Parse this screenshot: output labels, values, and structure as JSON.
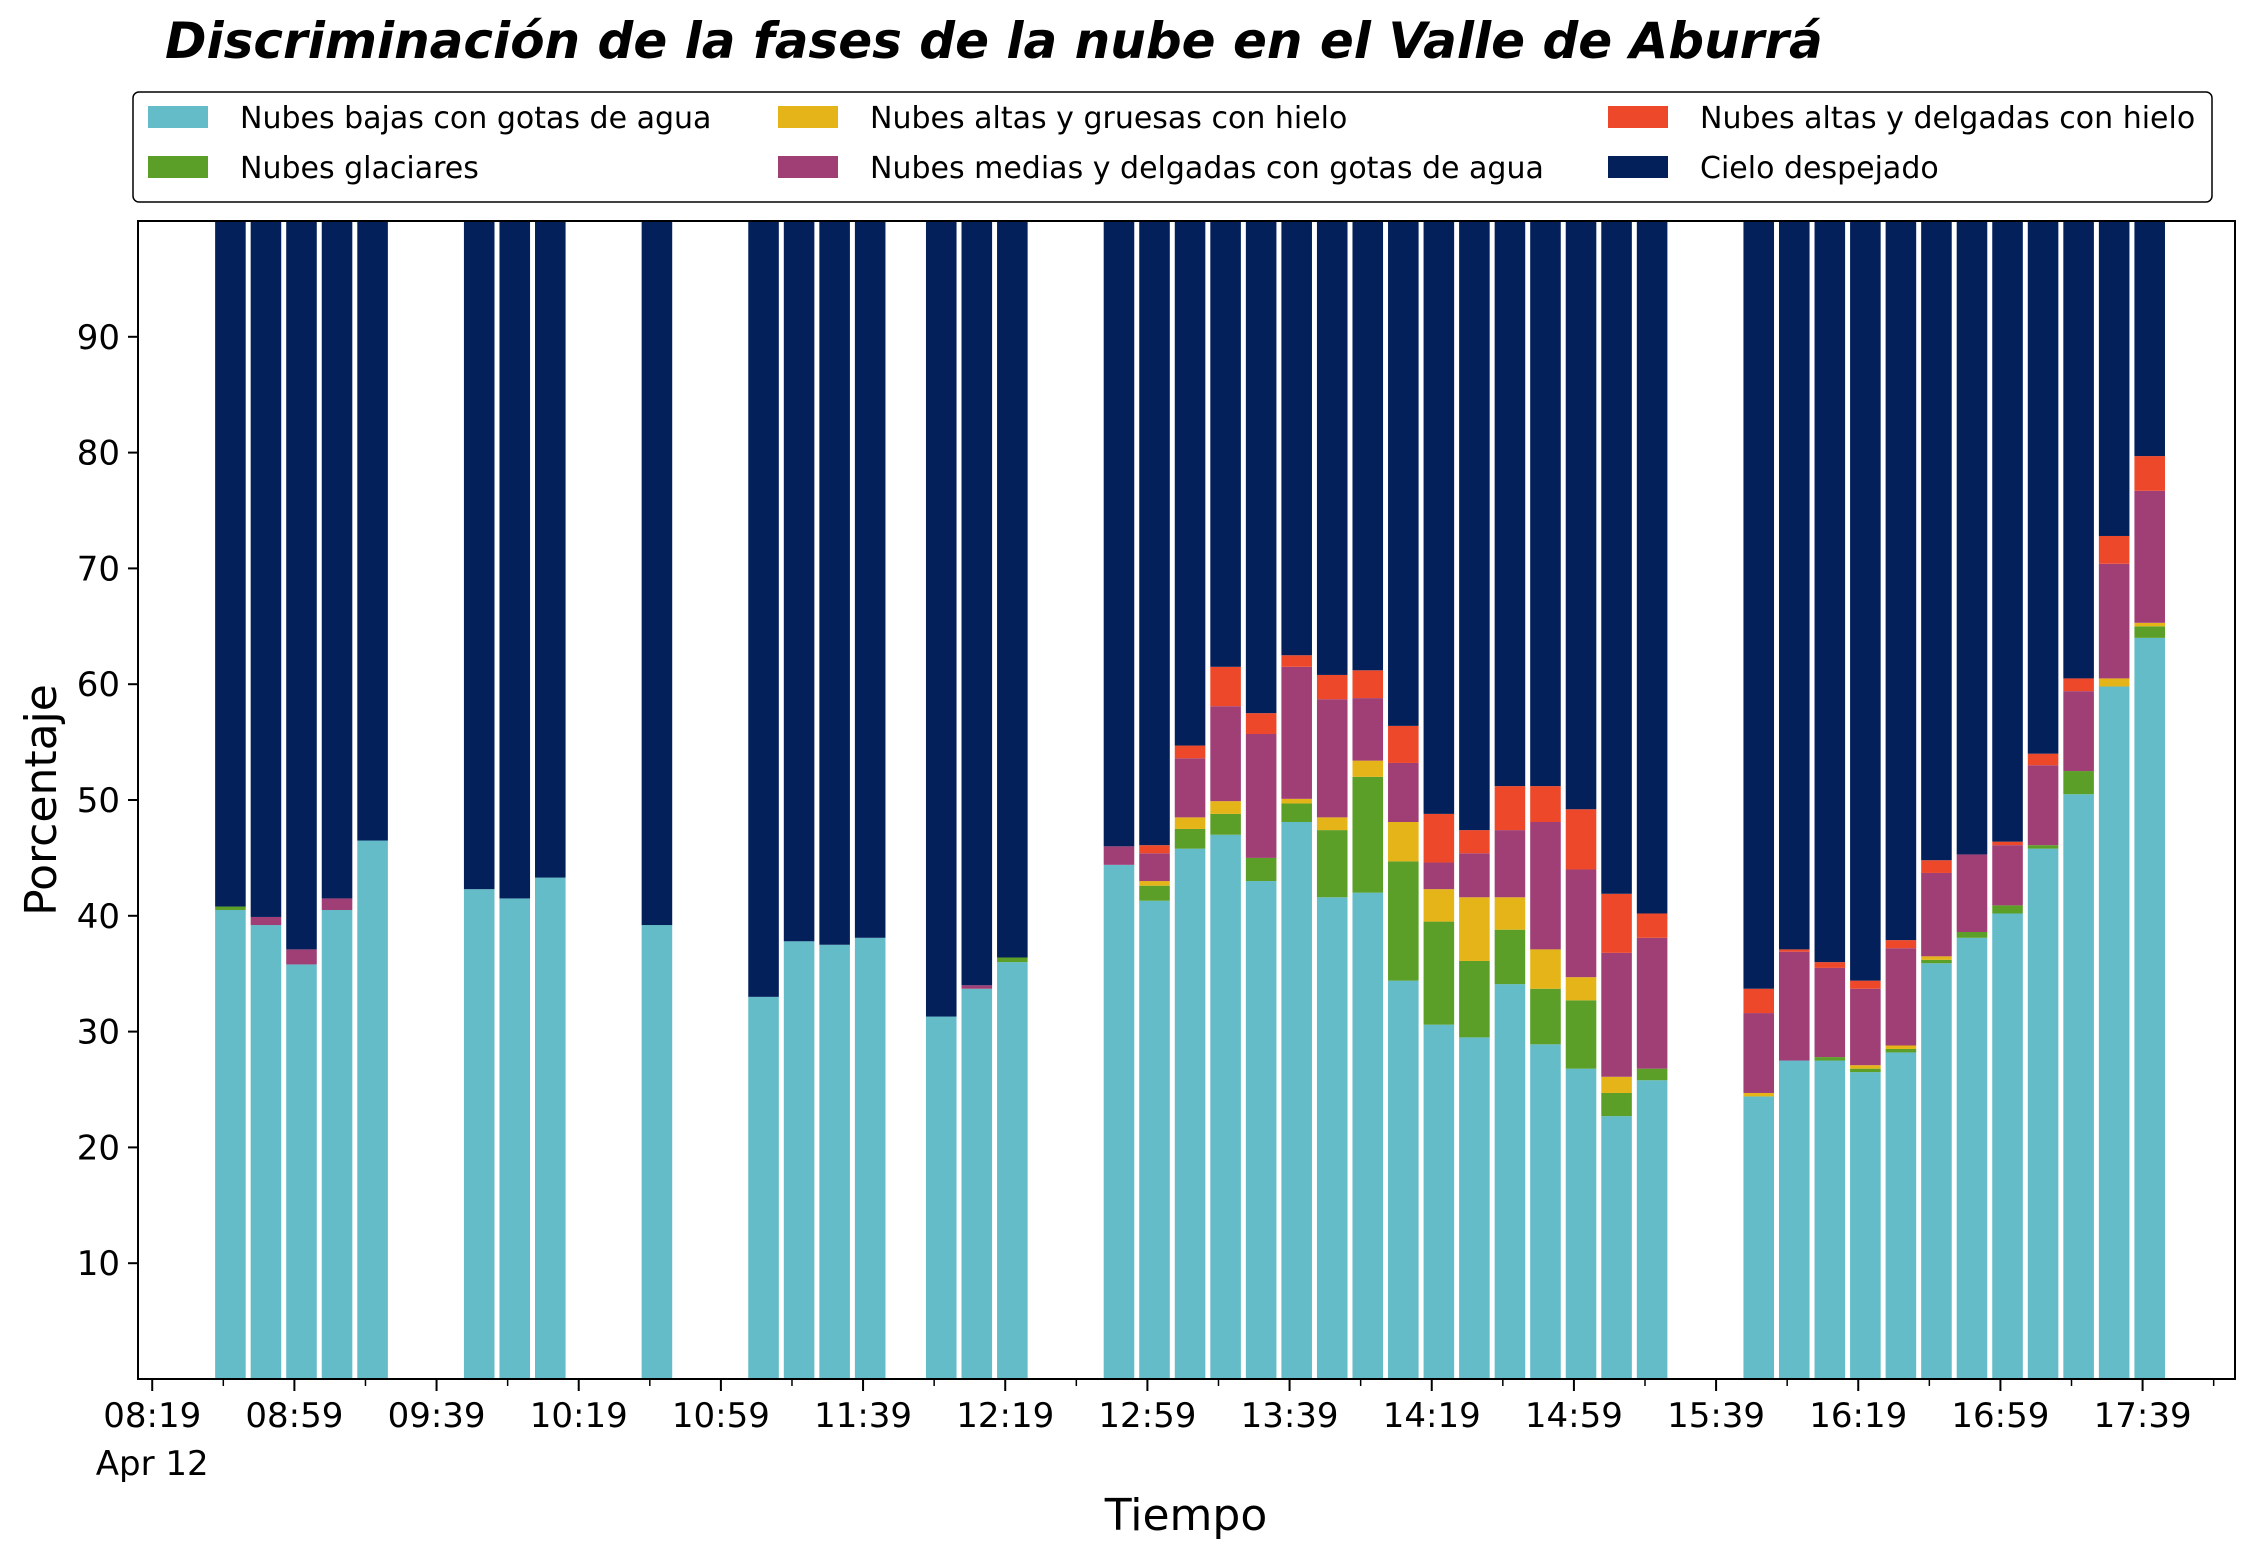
{
  "chart_data": {
    "type": "bar",
    "stacked": true,
    "title": "Discriminación de la fases de la nube en el Valle de Aburrá",
    "xlabel": "Tiempo",
    "ylabel": "Porcentaje",
    "ylim": [
      0,
      100
    ],
    "yticks": [
      10,
      20,
      30,
      40,
      50,
      60,
      70,
      80,
      90
    ],
    "xlim": [
      495,
      1085
    ],
    "xticks": [
      {
        "t": 499,
        "label": "08:19",
        "sublabel": "Apr 12"
      },
      {
        "t": 539,
        "label": "08:59"
      },
      {
        "t": 579,
        "label": "09:39"
      },
      {
        "t": 619,
        "label": "10:19"
      },
      {
        "t": 659,
        "label": "10:59"
      },
      {
        "t": 699,
        "label": "11:39"
      },
      {
        "t": 739,
        "label": "12:19"
      },
      {
        "t": 779,
        "label": "12:59"
      },
      {
        "t": 819,
        "label": "13:39"
      },
      {
        "t": 859,
        "label": "14:19"
      },
      {
        "t": 899,
        "label": "14:59"
      },
      {
        "t": 939,
        "label": "15:39"
      },
      {
        "t": 979,
        "label": "16:19"
      },
      {
        "t": 1019,
        "label": "16:59"
      },
      {
        "t": 1059,
        "label": "17:39"
      }
    ],
    "grid": false,
    "legend_position": "top",
    "series": [
      {
        "name": "Nubes bajas con gotas de agua",
        "color": "#63bcc8"
      },
      {
        "name": "Nubes glaciares",
        "color": "#5b9f28"
      },
      {
        "name": "Nubes altas y gruesas con hielo",
        "color": "#e5b418"
      },
      {
        "name": "Nubes medias y delgadas con gotas de agua",
        "color": "#a03e76"
      },
      {
        "name": "Nubes altas y delgadas con hielo",
        "color": "#ee482b"
      },
      {
        "name": "Cielo despejado",
        "color": "#03205b"
      }
    ],
    "bars": [
      {
        "t": 521,
        "values": [
          40.5,
          0.3,
          0,
          0,
          0,
          59.2
        ]
      },
      {
        "t": 531,
        "values": [
          39.2,
          0,
          0,
          0.7,
          0,
          60.1
        ]
      },
      {
        "t": 541,
        "values": [
          35.8,
          0,
          0,
          1.3,
          0,
          62.9
        ]
      },
      {
        "t": 551,
        "values": [
          40.5,
          0,
          0,
          1.0,
          0,
          58.5
        ]
      },
      {
        "t": 561,
        "values": [
          46.5,
          0,
          0,
          0,
          0,
          53.5
        ]
      },
      {
        "t": 591,
        "values": [
          42.3,
          0,
          0,
          0,
          0,
          57.7
        ]
      },
      {
        "t": 601,
        "values": [
          41.5,
          0,
          0,
          0,
          0,
          58.5
        ]
      },
      {
        "t": 611,
        "values": [
          43.3,
          0,
          0,
          0,
          0,
          56.7
        ]
      },
      {
        "t": 641,
        "values": [
          39.2,
          0,
          0,
          0,
          0,
          60.8
        ]
      },
      {
        "t": 671,
        "values": [
          33.0,
          0,
          0,
          0,
          0,
          67.0
        ]
      },
      {
        "t": 681,
        "values": [
          37.8,
          0,
          0,
          0,
          0,
          62.2
        ]
      },
      {
        "t": 691,
        "values": [
          37.5,
          0,
          0,
          0,
          0,
          62.5
        ]
      },
      {
        "t": 701,
        "values": [
          38.1,
          0,
          0,
          0,
          0,
          61.9
        ]
      },
      {
        "t": 721,
        "values": [
          31.3,
          0,
          0,
          0,
          0,
          68.7
        ]
      },
      {
        "t": 731,
        "values": [
          33.7,
          0,
          0,
          0.3,
          0,
          66.0
        ]
      },
      {
        "t": 741,
        "values": [
          36.0,
          0.4,
          0,
          0,
          0,
          63.6
        ]
      },
      {
        "t": 771,
        "values": [
          44.4,
          0,
          0,
          1.6,
          0,
          54.0
        ]
      },
      {
        "t": 781,
        "values": [
          41.3,
          1.3,
          0.4,
          2.4,
          0.7,
          53.9
        ]
      },
      {
        "t": 791,
        "values": [
          45.8,
          1.7,
          1.0,
          5.1,
          1.1,
          45.3
        ]
      },
      {
        "t": 801,
        "values": [
          47.0,
          1.8,
          1.1,
          8.2,
          3.4,
          38.5
        ]
      },
      {
        "t": 811,
        "values": [
          43.0,
          2.0,
          0,
          10.7,
          1.8,
          42.5
        ]
      },
      {
        "t": 821,
        "values": [
          48.1,
          1.6,
          0.4,
          11.4,
          1.0,
          37.5
        ]
      },
      {
        "t": 831,
        "values": [
          41.6,
          5.8,
          1.1,
          10.2,
          2.1,
          39.2
        ]
      },
      {
        "t": 841,
        "values": [
          42.0,
          10.0,
          1.4,
          5.4,
          2.4,
          38.8
        ]
      },
      {
        "t": 851,
        "values": [
          34.4,
          10.3,
          3.4,
          5.1,
          3.2,
          43.6
        ]
      },
      {
        "t": 861,
        "values": [
          30.6,
          8.9,
          2.8,
          2.3,
          4.2,
          51.2
        ]
      },
      {
        "t": 871,
        "values": [
          29.5,
          6.6,
          5.5,
          3.8,
          2.0,
          52.6
        ]
      },
      {
        "t": 881,
        "values": [
          34.1,
          4.7,
          2.8,
          5.8,
          3.8,
          48.8
        ]
      },
      {
        "t": 891,
        "values": [
          28.9,
          4.8,
          3.4,
          11.0,
          3.1,
          48.8
        ]
      },
      {
        "t": 901,
        "values": [
          26.8,
          5.9,
          2.0,
          9.3,
          5.2,
          50.8
        ]
      },
      {
        "t": 911,
        "values": [
          22.7,
          2.0,
          1.4,
          10.7,
          5.1,
          58.1
        ]
      },
      {
        "t": 921,
        "values": [
          25.8,
          1.0,
          0,
          11.3,
          2.1,
          59.8
        ]
      },
      {
        "t": 951,
        "values": [
          24.4,
          0,
          0.3,
          6.9,
          2.1,
          66.3
        ]
      },
      {
        "t": 961,
        "values": [
          27.5,
          0,
          0,
          9.4,
          0.2,
          62.9
        ]
      },
      {
        "t": 971,
        "values": [
          27.5,
          0.3,
          0,
          7.7,
          0.5,
          64.0
        ]
      },
      {
        "t": 981,
        "values": [
          26.5,
          0.3,
          0.3,
          6.6,
          0.7,
          65.6
        ]
      },
      {
        "t": 991,
        "values": [
          28.2,
          0.3,
          0.3,
          8.4,
          0.7,
          62.1
        ]
      },
      {
        "t": 1001,
        "values": [
          35.9,
          0.3,
          0.3,
          7.2,
          1.1,
          55.2
        ]
      },
      {
        "t": 1011,
        "values": [
          38.1,
          0.5,
          0,
          6.7,
          0,
          54.7
        ]
      },
      {
        "t": 1021,
        "values": [
          40.2,
          0.7,
          0,
          5.2,
          0.3,
          53.6
        ]
      },
      {
        "t": 1031,
        "values": [
          45.8,
          0.3,
          0,
          6.9,
          1.0,
          46.0
        ]
      },
      {
        "t": 1041,
        "values": [
          50.5,
          2.0,
          0,
          6.9,
          1.1,
          39.5
        ]
      },
      {
        "t": 1051,
        "values": [
          59.8,
          0,
          0.7,
          9.9,
          2.4,
          27.2
        ]
      },
      {
        "t": 1061,
        "values": [
          64.0,
          1.0,
          0.3,
          11.4,
          3.0,
          20.3
        ]
      }
    ]
  }
}
